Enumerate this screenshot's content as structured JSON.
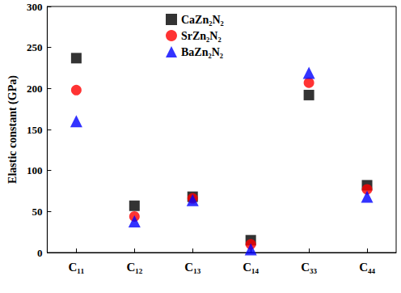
{
  "chart_data": {
    "type": "scatter",
    "y_label": "Elastic constant (GPa)",
    "categories": [
      "C₁₁",
      "C₁₂",
      "C₁₃",
      "C₁₄",
      "C₃₃",
      "C₄₄"
    ],
    "series": [
      {
        "name": "CaZn₂N₂",
        "color": "#000000",
        "marker": "square",
        "values": [
          237,
          57,
          68,
          15,
          192,
          82
        ]
      },
      {
        "name": "SrZn₂N₂",
        "color": "#ff0000",
        "marker": "circle",
        "values": [
          198,
          44,
          66,
          10,
          207,
          77
        ]
      },
      {
        "name": "BaZn₂N₂",
        "color": "#0000ff",
        "marker": "triangle",
        "values": [
          160,
          38,
          64,
          4,
          219,
          68
        ]
      }
    ],
    "ylim": [
      0,
      300
    ],
    "yticks": [
      0,
      50,
      100,
      150,
      200,
      250,
      300
    ],
    "grid": false,
    "legend": "top"
  }
}
